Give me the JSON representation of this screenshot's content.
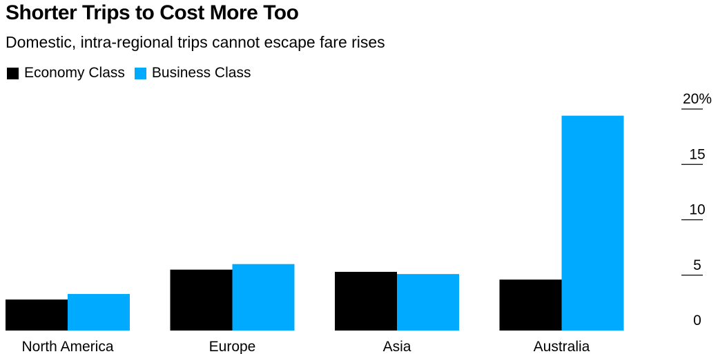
{
  "chart_data": {
    "type": "bar",
    "title": "Shorter Trips to Cost More Too",
    "subtitle": "Domestic, intra-regional trips cannot escape fare rises",
    "categories": [
      "North America",
      "Europe",
      "Asia",
      "Australia"
    ],
    "series": [
      {
        "name": "Economy Class",
        "color": "#000000",
        "values": [
          2.8,
          5.5,
          5.3,
          4.6
        ]
      },
      {
        "name": "Business Class",
        "color": "#00aaff",
        "values": [
          3.3,
          6.0,
          5.1,
          19.4
        ]
      }
    ],
    "ylim": [
      0,
      20
    ],
    "yticks": [
      0,
      5,
      10,
      15,
      20
    ],
    "ytick_labels": [
      "0",
      "5",
      "10",
      "15",
      "20%"
    ],
    "y_axis_side": "right",
    "legend_position": "top-left",
    "grid": false
  }
}
